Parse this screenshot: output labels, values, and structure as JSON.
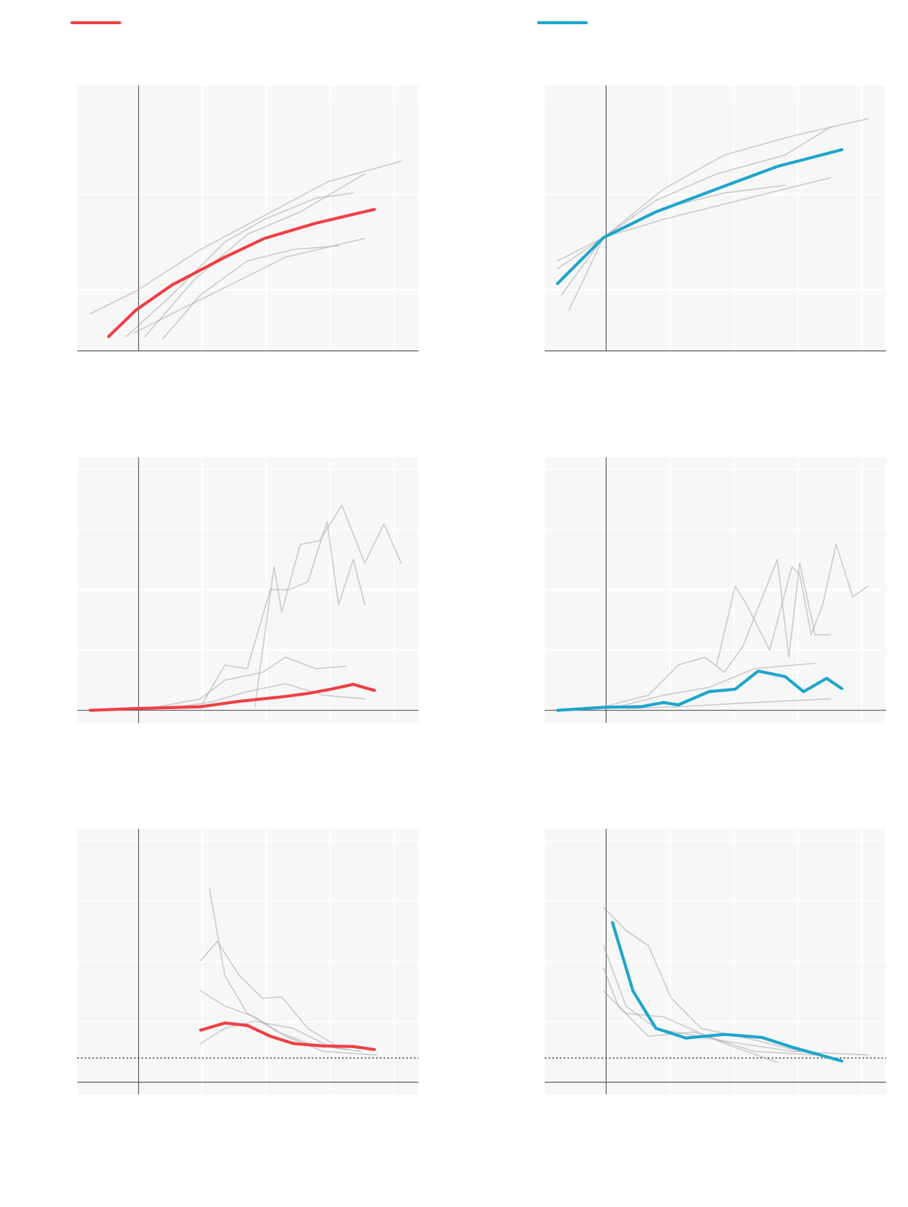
{
  "legend": [
    {
      "color": "#ef4044"
    },
    {
      "color": "#1ea5cb"
    }
  ],
  "chart_data": [
    {
      "type": "line",
      "xlim": [
        -0.96,
        4.38
      ],
      "ylim": [
        0,
        100
      ],
      "xticks": [
        0,
        1,
        2,
        3,
        4
      ],
      "yticks": [
        23,
        59,
        96
      ],
      "grid": true,
      "series": [
        {
          "color": "#aaaaaa",
          "x": [
            -0.76,
            -0.04,
            0.97,
            1.97,
            2.97,
            4.11
          ],
          "values": [
            14.0,
            22.5,
            38.2,
            51.0,
            63.8,
            71.5
          ]
        },
        {
          "color": "#aaaaaa",
          "x": [
            -0.19,
            0.52,
            1.35,
            1.97,
            2.77,
            3.36
          ],
          "values": [
            5.4,
            21.1,
            41.0,
            49.6,
            57.5,
            59.5
          ]
        },
        {
          "color": "#aaaaaa",
          "x": [
            0.38,
            0.97,
            1.7,
            2.42,
            3.13
          ],
          "values": [
            4.6,
            21.1,
            33.9,
            38.2,
            39.6
          ]
        },
        {
          "color": "#aaaaaa",
          "x": [
            -0.07,
            0.64,
            1.35,
            2.3,
            3.54
          ],
          "values": [
            6.8,
            15.4,
            23.9,
            35.3,
            42.4
          ]
        },
        {
          "color": "#aaaaaa",
          "x": [
            0.1,
            0.87,
            1.7,
            2.53,
            3.54
          ],
          "values": [
            5.4,
            26.8,
            43.9,
            52.4,
            66.7
          ]
        },
        {
          "color": "#ef4044",
          "x": [
            -0.47,
            -0.04,
            0.52,
            1.35,
            1.97,
            2.77,
            3.69
          ],
          "values": [
            5.4,
            15.4,
            24.8,
            35.3,
            42.4,
            48.1,
            53.3
          ]
        }
      ]
    },
    {
      "type": "line",
      "xlim": [
        -0.96,
        4.38
      ],
      "ylim": [
        0,
        100
      ],
      "xticks": [
        0,
        1,
        2,
        3,
        4
      ],
      "yticks": [
        23,
        59,
        96
      ],
      "grid": true,
      "series": [
        {
          "color": "#aaaaaa",
          "x": [
            -0.58,
            -0.04,
            0.9,
            1.85,
            2.91,
            4.1
          ],
          "values": [
            15.4,
            42.7,
            61.0,
            73.8,
            80.9,
            87.5
          ]
        },
        {
          "color": "#aaaaaa",
          "x": [
            -0.76,
            -0.04,
            0.9,
            1.85,
            2.8,
            3.51
          ],
          "values": [
            33.9,
            42.7,
            49.6,
            55.3,
            61.0,
            65.2
          ]
        },
        {
          "color": "#aaaaaa",
          "x": [
            -0.7,
            -0.04,
            0.78,
            1.73,
            2.8,
            3.51
          ],
          "values": [
            21.1,
            42.7,
            56.7,
            66.7,
            73.8,
            84.3
          ]
        },
        {
          "color": "#aaaaaa",
          "x": [
            -0.76,
            -0.04,
            0.9,
            1.85,
            2.8
          ],
          "values": [
            31.0,
            42.7,
            53.8,
            59.5,
            62.4
          ]
        },
        {
          "color": "#1ea5cb",
          "x": [
            -0.76,
            -0.04,
            0.78,
            1.73,
            2.68,
            3.69
          ],
          "values": [
            25.4,
            42.7,
            52.4,
            61.0,
            69.5,
            75.8
          ]
        }
      ]
    },
    {
      "type": "line",
      "xlim": [
        -0.96,
        4.38
      ],
      "ylim": [
        -0.21,
        4.19
      ],
      "xticks": [
        0,
        1,
        2,
        3,
        4
      ],
      "yticks": [
        1,
        2,
        3,
        4
      ],
      "grid": true,
      "series": [
        {
          "color": "#aaaaaa",
          "x": [
            1.82,
            2.12,
            2.24,
            2.53,
            2.83,
            3.18,
            3.54,
            3.84,
            4.11
          ],
          "values": [
            0.06,
            2.38,
            1.63,
            2.75,
            2.81,
            3.4,
            2.44,
            3.09,
            2.44
          ]
        },
        {
          "color": "#aaaaaa",
          "x": [
            0.97,
            1.35,
            1.7,
            2.06,
            2.36,
            2.65,
            2.95,
            3.13,
            3.36,
            3.54
          ],
          "values": [
            0.06,
            0.75,
            0.69,
            2.0,
            2.0,
            2.13,
            3.13,
            1.75,
            2.5,
            1.75
          ]
        },
        {
          "color": "#aaaaaa",
          "x": [
            0.16,
            0.97,
            1.35,
            1.94,
            2.3,
            2.77,
            3.25
          ],
          "values": [
            0.03,
            0.19,
            0.5,
            0.63,
            0.88,
            0.69,
            0.73
          ]
        },
        {
          "color": "#aaaaaa",
          "x": [
            0.4,
            1.11,
            1.7,
            2.3,
            2.89,
            3.54
          ],
          "values": [
            0.03,
            0.13,
            0.31,
            0.44,
            0.25,
            0.19
          ]
        },
        {
          "color": "#ef4044",
          "x": [
            -0.76,
            -0.04,
            0.97,
            1.58,
            2.3,
            2.65,
            3.01,
            3.36,
            3.69
          ],
          "values": [
            0,
            0.03,
            0.06,
            0.15,
            0.23,
            0.28,
            0.35,
            0.43,
            0.33
          ]
        }
      ]
    },
    {
      "type": "line",
      "xlim": [
        -0.96,
        4.38
      ],
      "ylim": [
        -0.21,
        4.19
      ],
      "xticks": [
        0,
        1,
        2,
        3,
        4
      ],
      "yticks": [
        1,
        2,
        3,
        4
      ],
      "grid": true,
      "series": [
        {
          "color": "#aaaaaa",
          "x": [
            1.73,
            2.02,
            2.2,
            2.56,
            2.91,
            3.03,
            3.21,
            3.39,
            3.6,
            3.86,
            4.1
          ],
          "values": [
            0.75,
            2.06,
            1.75,
            1.0,
            2.38,
            2.25,
            1.25,
            1.75,
            2.75,
            1.88,
            2.06
          ]
        },
        {
          "color": "#aaaaaa",
          "x": [
            -0.04,
            0.66,
            1.13,
            1.55,
            1.85,
            2.14,
            2.68,
            2.86,
            3.03,
            3.27,
            3.51
          ],
          "values": [
            0.06,
            0.25,
            0.75,
            0.88,
            0.63,
            1.06,
            2.5,
            0.88,
            2.44,
            1.25,
            1.25
          ]
        },
        {
          "color": "#aaaaaa",
          "x": [
            0.19,
            0.9,
            1.61,
            2.32,
            3.27
          ],
          "values": [
            0.06,
            0.25,
            0.38,
            0.69,
            0.78
          ]
        },
        {
          "color": "#aaaaaa",
          "x": [
            0.31,
            1.13,
            2.32,
            3.51
          ],
          "values": [
            0.03,
            0.06,
            0.13,
            0.19
          ]
        },
        {
          "color": "#1ea5cb",
          "x": [
            -0.76,
            -0.04,
            0.54,
            0.9,
            1.13,
            1.61,
            2.02,
            2.38,
            2.8,
            3.09,
            3.45,
            3.69
          ],
          "values": [
            0,
            0.05,
            0.06,
            0.13,
            0.09,
            0.31,
            0.35,
            0.65,
            0.56,
            0.31,
            0.53,
            0.36
          ]
        }
      ]
    },
    {
      "type": "line",
      "xlim": [
        -0.96,
        4.38
      ],
      "ylim": [
        -0.2,
        4.19
      ],
      "xticks": [
        0,
        1,
        2,
        3,
        4
      ],
      "yticks": [
        1,
        2,
        3,
        4
      ],
      "grid": true,
      "hline": 0.4,
      "series": [
        {
          "color": "#aaaaaa",
          "x": [
            1.11,
            1.35,
            1.7,
            2.18,
            2.65,
            3.25
          ],
          "values": [
            3.2,
            1.76,
            1.14,
            0.83,
            0.64,
            0.54
          ]
        },
        {
          "color": "#aaaaaa",
          "x": [
            0.97,
            1.23,
            1.58,
            1.94,
            2.24,
            2.65,
            3.13
          ],
          "values": [
            2.01,
            2.33,
            1.76,
            1.39,
            1.41,
            0.89,
            0.58
          ]
        },
        {
          "color": "#aaaaaa",
          "x": [
            0.97,
            1.35,
            1.82,
            2.3,
            2.89,
            3.72
          ],
          "values": [
            1.51,
            1.26,
            1.08,
            0.76,
            0.51,
            0.45
          ]
        },
        {
          "color": "#aaaaaa",
          "x": [
            0.97,
            1.35,
            1.82,
            2.42,
            3.01,
            3.48
          ],
          "values": [
            0.64,
            0.89,
            1.01,
            0.89,
            0.58,
            0.51
          ]
        },
        {
          "color": "#ef4044",
          "x": [
            0.97,
            1.35,
            1.7,
            2.06,
            2.42,
            2.89,
            3.36,
            3.69
          ],
          "values": [
            0.86,
            0.98,
            0.94,
            0.76,
            0.64,
            0.6,
            0.59,
            0.54
          ]
        }
      ]
    },
    {
      "type": "line",
      "xlim": [
        -0.96,
        4.38
      ],
      "ylim": [
        -0.2,
        4.19
      ],
      "xticks": [
        0,
        1,
        2,
        3,
        4
      ],
      "yticks": [
        1,
        2,
        3,
        4
      ],
      "grid": true,
      "hline": 0.4,
      "series": [
        {
          "color": "#aaaaaa",
          "x": [
            -0.04,
            0.31,
            0.66,
            1.02,
            1.49,
            2.32,
            3.03
          ],
          "values": [
            2.89,
            2.51,
            2.26,
            1.39,
            0.89,
            0.7,
            0.51
          ]
        },
        {
          "color": "#aaaaaa",
          "x": [
            -0.04,
            0.31,
            0.78,
            1.73,
            2.91,
            4.1
          ],
          "values": [
            2.26,
            1.26,
            0.89,
            0.7,
            0.51,
            0.45
          ]
        },
        {
          "color": "#aaaaaa",
          "x": [
            -0.04,
            0.31,
            0.9,
            1.85,
            2.68
          ],
          "values": [
            1.51,
            1.14,
            1.08,
            0.64,
            0.33
          ]
        },
        {
          "color": "#aaaaaa",
          "x": [
            -0.04,
            0.19,
            0.66,
            1.37,
            2.32,
            3.27
          ],
          "values": [
            1.89,
            1.26,
            0.76,
            0.83,
            0.51,
            0.45
          ]
        },
        {
          "color": "#1ea5cb",
          "x": [
            0.1,
            0.42,
            0.78,
            1.25,
            1.85,
            2.44,
            2.91,
            3.69
          ],
          "values": [
            2.64,
            1.51,
            0.89,
            0.73,
            0.79,
            0.74,
            0.58,
            0.35
          ]
        }
      ]
    }
  ]
}
